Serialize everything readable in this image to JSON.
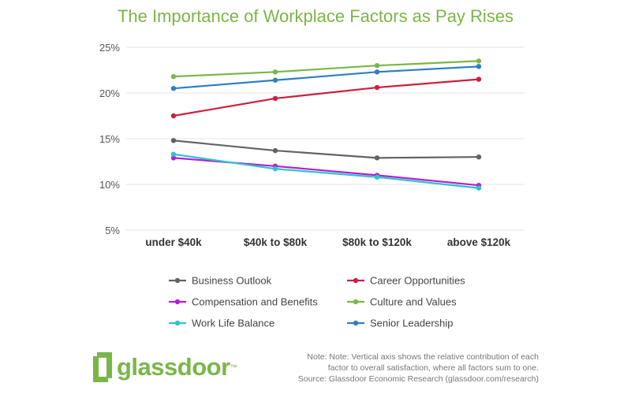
{
  "title": "The Importance of Workplace Factors as Pay Rises",
  "chart_data": {
    "type": "line",
    "title": "The Importance of Workplace Factors as Pay Rises",
    "xlabel": "",
    "ylabel": "",
    "categories": [
      "under $40k",
      "$40k to $80k",
      "$80k to $120k",
      "above $120k"
    ],
    "y_ticks": [
      "25%",
      "20%",
      "15%",
      "10%",
      "5%"
    ],
    "y_tick_values": [
      25,
      20,
      15,
      10,
      5
    ],
    "ylim": [
      5,
      25
    ],
    "grid": true,
    "legend_position": "bottom",
    "series": [
      {
        "name": "Business Outlook",
        "color": "#636363",
        "values": [
          14.8,
          13.7,
          12.9,
          13.0
        ]
      },
      {
        "name": "Career Opportunities",
        "color": "#cc1f3d",
        "values": [
          17.5,
          19.4,
          20.6,
          21.5
        ]
      },
      {
        "name": "Compensation and Benefits",
        "color": "#b31fd6",
        "values": [
          12.9,
          12.0,
          11.0,
          9.9
        ]
      },
      {
        "name": "Culture and Values",
        "color": "#7ab648",
        "values": [
          21.8,
          22.3,
          23.0,
          23.5
        ]
      },
      {
        "name": "Work Life Balance",
        "color": "#2ec4cc",
        "values": [
          13.3,
          11.7,
          10.8,
          9.6
        ]
      },
      {
        "name": "Senior Leadership",
        "color": "#2b7fc5",
        "values": [
          20.5,
          21.4,
          22.3,
          22.9
        ]
      }
    ]
  },
  "footer": {
    "logo_text": "glassdoor",
    "logo_mark": "™",
    "note_line1": "Note: Note: Vertical axis shows the relative contribution of each",
    "note_line2": "factor to overall satisfaction, where all factors sum to one.",
    "note_line3": "Source: Glassdoor Economic Research (glassdoor.com/research)"
  }
}
